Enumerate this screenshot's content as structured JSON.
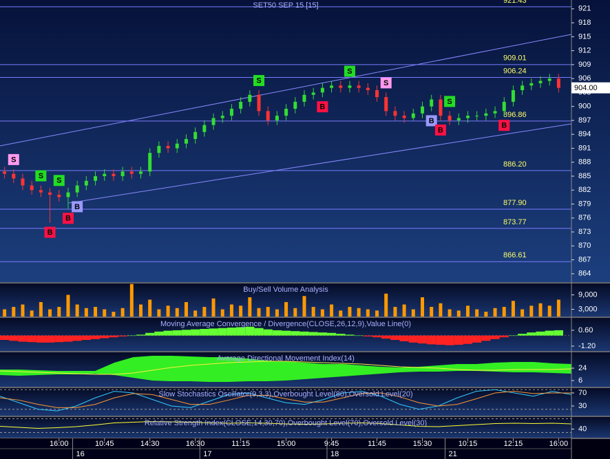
{
  "chart_data": [
    {
      "type": "candlestick",
      "title": "SET50 SEP 15   [15]",
      "categories": [
        null,
        null,
        null,
        null,
        null,
        null,
        "16:00",
        null,
        null,
        null,
        null,
        "10:45",
        null,
        null,
        null,
        null,
        "14:30",
        null,
        null,
        null,
        null,
        "16:30",
        null,
        null,
        null,
        null,
        "11:15",
        null,
        null,
        null,
        null,
        "15:00",
        null,
        null,
        null,
        null,
        "9:45",
        null,
        null,
        null,
        null,
        "11:45",
        null,
        null,
        null,
        null,
        "15:30",
        null,
        null,
        null,
        null,
        "10:15",
        null,
        null,
        null,
        null,
        "12:15",
        null,
        null,
        null,
        null,
        "16:00"
      ],
      "days": [
        null,
        null,
        null,
        null,
        null,
        null,
        null,
        null,
        "16",
        null,
        null,
        null,
        null,
        null,
        null,
        null,
        null,
        null,
        null,
        null,
        null,
        null,
        "17",
        null,
        null,
        null,
        null,
        null,
        null,
        null,
        null,
        null,
        null,
        null,
        null,
        null,
        "18",
        null,
        null,
        null,
        null,
        null,
        null,
        null,
        null,
        null,
        null,
        null,
        null,
        "21",
        null,
        null,
        null,
        null,
        null,
        null,
        null,
        null,
        null,
        null,
        null,
        null
      ],
      "open": [
        886,
        885.5,
        884.5,
        883,
        882,
        881.5,
        881,
        880.5,
        881.5,
        883,
        884,
        885,
        885.5,
        885,
        886,
        885.5,
        886,
        890,
        891.5,
        891,
        892,
        893,
        894.5,
        896,
        897.5,
        898,
        899.5,
        901,
        902.5,
        899,
        897,
        898,
        899.5,
        901,
        902.5,
        903,
        904,
        904.5,
        904,
        904.5,
        904,
        903.5,
        902,
        899,
        898,
        897.5,
        898.5,
        900,
        901.5,
        898,
        897,
        897.5,
        898,
        898,
        898.5,
        899,
        901,
        903.5,
        904.5,
        905,
        905.5,
        906
      ],
      "high": [
        887,
        886.5,
        885.5,
        884,
        883,
        882.5,
        882,
        882.5,
        884,
        885,
        886,
        886.5,
        886.5,
        887,
        887,
        887,
        891,
        892.5,
        892.5,
        893,
        894,
        895.5,
        897,
        898.5,
        899,
        900.5,
        902,
        903.5,
        903.5,
        900,
        899,
        900.5,
        902,
        903.5,
        904,
        905,
        905.5,
        905.5,
        905.5,
        905.5,
        905,
        904.5,
        903,
        900,
        899,
        899.5,
        901,
        902.5,
        902.5,
        899,
        898.5,
        899,
        899,
        899.5,
        900,
        902,
        904.5,
        905.5,
        906,
        906.5,
        907,
        907
      ],
      "low": [
        884.5,
        883.5,
        882,
        881,
        880.5,
        875,
        879.5,
        878,
        880.5,
        882,
        883,
        884,
        884,
        884,
        884.5,
        884.5,
        885,
        889,
        890,
        890,
        891,
        892,
        893.5,
        895,
        896.5,
        897,
        898.5,
        900,
        898,
        896,
        896,
        897,
        898.5,
        900,
        901.5,
        902,
        903,
        903,
        903,
        903,
        902.5,
        901,
        898,
        897,
        896.5,
        897,
        897.5,
        899,
        897,
        896,
        896,
        896.5,
        897,
        897,
        897.5,
        898,
        900,
        902.5,
        903.5,
        904,
        904.5,
        903
      ],
      "close": [
        885.5,
        884.5,
        883,
        882,
        881.5,
        881,
        880.5,
        881.5,
        883,
        884,
        885,
        885.5,
        885,
        886,
        885.5,
        886,
        890,
        891.5,
        891,
        892,
        893,
        894.5,
        896,
        897.5,
        898,
        899.5,
        901,
        902.5,
        899,
        897,
        898,
        899.5,
        901,
        902.5,
        903,
        904,
        904.5,
        904,
        904.5,
        904,
        903.5,
        902,
        899,
        898,
        897.5,
        898.5,
        900,
        901.5,
        898,
        897,
        897.5,
        898,
        898,
        898.5,
        899,
        901,
        903.5,
        904.5,
        905,
        905.5,
        906,
        904
      ],
      "up_color": "#33dd33",
      "down_color": "#ff3333",
      "ylim": [
        862.2,
        922.9
      ],
      "yticks": [
        921,
        918,
        915,
        912,
        909,
        906,
        903,
        900,
        897,
        894,
        891,
        888,
        885,
        882,
        879,
        876,
        873,
        870,
        867,
        864
      ],
      "levels": [
        921.43,
        909.01,
        906.24,
        896.86,
        {
          "value": 886.2,
          "label": "886.20"
        },
        {
          "value": 877.9,
          "label": "877.90"
        },
        873.77,
        866.61
      ],
      "level_color": "#7b7bff",
      "level_label_color": "#ffff66",
      "last_price": {
        "value": 904,
        "label": "904.00"
      },
      "signals": [
        {
          "label": "S",
          "bar": 1,
          "position": "above",
          "color": "#ff99ee"
        },
        {
          "label": "S",
          "bar": 4,
          "position": "above",
          "color": "#22dd22"
        },
        {
          "label": "S",
          "bar": 6,
          "position": "above",
          "color": "#22dd22"
        },
        {
          "label": "B",
          "bar": 5,
          "position": "below",
          "color": "#ff1144"
        },
        {
          "label": "B",
          "bar": 7,
          "position": "below",
          "color": "#ff1144"
        },
        {
          "label": "B",
          "bar": 8,
          "position": "below",
          "color": "#9999ff"
        },
        {
          "label": "S",
          "bar": 28,
          "position": "above",
          "color": "#22dd22"
        },
        {
          "label": "B",
          "bar": 35,
          "position": "below",
          "color": "#ff1144"
        },
        {
          "label": "S",
          "bar": 38,
          "position": "above",
          "color": "#22dd22"
        },
        {
          "label": "S",
          "bar": 42,
          "position": "above",
          "color": "#ff99ee"
        },
        {
          "label": "B",
          "bar": 47,
          "position": "below",
          "color": "#9999ff"
        },
        {
          "label": "B",
          "bar": 48,
          "position": "below",
          "color": "#ff1144"
        },
        {
          "label": "S",
          "bar": 49,
          "position": "above",
          "color": "#22dd22"
        },
        {
          "label": "B",
          "bar": 55,
          "position": "below",
          "color": "#ff1144"
        }
      ]
    },
    {
      "type": "bar",
      "title": "Buy/Sell Volume Analysis",
      "values": [
        3000,
        4000,
        5000,
        2500,
        6000,
        3000,
        4000,
        9000,
        5000,
        3500,
        4000,
        3000,
        2000,
        3500,
        13500,
        5000,
        7000,
        3000,
        4500,
        3500,
        6000,
        2500,
        4000,
        7500,
        3000,
        5000,
        4500,
        8000,
        3500,
        4000,
        3000,
        6000,
        3500,
        8500,
        4000,
        3000,
        5000,
        2500,
        4000,
        3500,
        3000,
        2500,
        9500,
        4000,
        5000,
        3000,
        8000,
        4000,
        5500,
        3000,
        2500,
        4500,
        3000,
        2000,
        3500,
        4000,
        6500,
        3000,
        4500,
        5500,
        4500,
        7000
      ],
      "color": "#ff9900",
      "ylim": [
        0,
        13700
      ],
      "yticks": [
        {
          "value": 9000,
          "label": "9,000"
        },
        {
          "value": 3000,
          "label": "3,000"
        }
      ]
    },
    {
      "type": "histogram",
      "title": "Moving Average Convergence / Divergence(CLOSE,26,12,9),Value Line(0)",
      "values": [
        -0.5,
        -0.6,
        -0.7,
        -0.75,
        -0.8,
        -0.8,
        -0.75,
        -0.7,
        -0.6,
        -0.5,
        -0.4,
        -0.3,
        -0.2,
        -0.1,
        0,
        0.1,
        0.3,
        0.45,
        0.55,
        0.6,
        0.65,
        0.7,
        0.75,
        0.8,
        0.85,
        0.9,
        0.95,
        1.0,
        0.85,
        0.7,
        0.6,
        0.55,
        0.5,
        0.45,
        0.4,
        0.35,
        0.3,
        0.2,
        0.1,
        0,
        -0.1,
        -0.2,
        -0.35,
        -0.5,
        -0.65,
        -0.8,
        -0.9,
        -1.0,
        -1.05,
        -1.1,
        -1.05,
        -0.95,
        -0.8,
        -0.6,
        -0.4,
        -0.2,
        0,
        0.2,
        0.35,
        0.45,
        0.55,
        0.6
      ],
      "positive_color": "#66ff33",
      "negative_color": "#ff2222",
      "ylim": [
        -1.75,
        2.0
      ],
      "yticks": [
        {
          "value": 0.6,
          "label": "0.60"
        },
        {
          "value": -1.2,
          "label": "-1.20"
        }
      ]
    },
    {
      "type": "band",
      "title": "Average Directional Movement Index(14)",
      "upper": [
        22,
        22,
        21,
        20,
        20,
        20,
        32,
        40,
        42,
        42,
        41,
        40,
        40,
        38,
        35,
        34,
        32,
        30,
        30,
        28,
        26,
        25,
        26,
        28,
        30,
        30,
        32,
        33,
        33,
        31,
        30
      ],
      "lower": [
        14,
        13,
        14,
        15,
        15,
        16,
        14,
        10,
        6,
        5,
        5,
        4,
        4,
        5,
        5,
        6,
        8,
        10,
        12,
        14,
        16,
        18,
        19,
        19,
        20,
        20,
        19,
        18,
        18,
        17,
        16
      ],
      "line": [
        20,
        19,
        18,
        17,
        16,
        15,
        15,
        17,
        21,
        25,
        28,
        30,
        32,
        33,
        34,
        34,
        33,
        32,
        31,
        30,
        28,
        26,
        25,
        24,
        22,
        21,
        21,
        22,
        22,
        22,
        23
      ],
      "fill_color": "#33ee22",
      "line_color": "#ffee44",
      "ylim": [
        -3,
        47
      ],
      "yticks": [
        24,
        6
      ]
    },
    {
      "type": "line",
      "title": "Slow Stochastics Oscillator(9,3,3),Overbought Level(80),Oversold Level(20)",
      "series": [
        {
          "color": "#33ccff",
          "values": [
            60,
            40,
            20,
            15,
            30,
            55,
            75,
            70,
            50,
            30,
            25,
            45,
            65,
            70,
            55,
            40,
            35,
            50,
            70,
            75,
            60,
            35,
            20,
            30,
            55,
            75,
            80,
            70,
            60,
            75,
            65
          ]
        },
        {
          "color": "#ff9933",
          "values": [
            55,
            48,
            35,
            25,
            25,
            35,
            55,
            68,
            65,
            50,
            35,
            35,
            48,
            62,
            63,
            52,
            42,
            42,
            55,
            68,
            70,
            58,
            40,
            30,
            35,
            52,
            70,
            75,
            68,
            70,
            70
          ]
        }
      ],
      "levels": [
        80,
        20
      ],
      "ylim": [
        0.5,
        84.7
      ],
      "yticks": [
        70,
        30
      ]
    },
    {
      "type": "line",
      "title": "Relative Strength Index(CLOSE,14,30,70),Overbought Level(70),Oversold Level(30)",
      "series": [
        {
          "color": "#ffff33",
          "values": [
            48,
            45,
            42,
            44,
            47,
            52,
            58,
            60,
            62,
            61,
            60,
            58,
            57,
            58,
            57,
            55,
            54,
            55,
            57,
            58,
            56,
            52,
            48,
            47,
            50,
            53,
            56,
            57,
            56,
            57,
            55
          ]
        }
      ],
      "levels": [
        70,
        30
      ],
      "ylim": [
        15,
        75
      ],
      "yticks": [
        40
      ]
    }
  ]
}
